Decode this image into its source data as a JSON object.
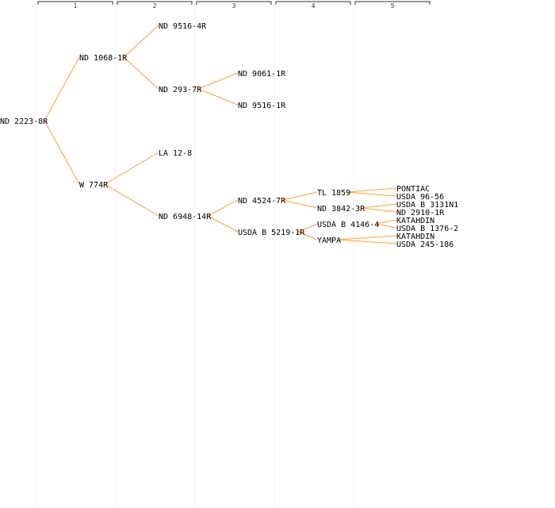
{
  "generations": [
    {
      "label": "1"
    },
    {
      "label": "2"
    },
    {
      "label": "3"
    },
    {
      "label": "4"
    },
    {
      "label": "5"
    }
  ],
  "colors": {
    "edge": "#f5a042",
    "guide": "#efefef",
    "header": "#333333",
    "text": "#000000"
  },
  "tree": {
    "name": "ND 2223-8R",
    "children": [
      {
        "name": "ND 1068-1R",
        "children": [
          {
            "name": "ND 9516-4R"
          },
          {
            "name": "ND 293-7R",
            "children": [
              {
                "name": "ND 9061-1R"
              },
              {
                "name": "ND 9516-1R"
              }
            ]
          }
        ]
      },
      {
        "name": "W 774R",
        "children": [
          {
            "name": "LA 12-8"
          },
          {
            "name": "ND 6948-14R",
            "children": [
              {
                "name": "ND 4524-7R",
                "children": [
                  {
                    "name": "TL 1859",
                    "children": [
                      {
                        "name": "PONTIAC"
                      },
                      {
                        "name": "USDA 96-56"
                      }
                    ]
                  },
                  {
                    "name": "ND 3842-3R",
                    "children": [
                      {
                        "name": "USDA B 3131N1"
                      },
                      {
                        "name": "ND 2910-1R"
                      }
                    ]
                  }
                ]
              },
              {
                "name": "USDA B 5219-1R",
                "children": [
                  {
                    "name": "USDA B 4146-4",
                    "children": [
                      {
                        "name": "KATAHDIN"
                      },
                      {
                        "name": "USDA B 1376-2"
                      }
                    ]
                  },
                  {
                    "name": "YAMPA",
                    "children": [
                      {
                        "name": "KATAHDIN"
                      },
                      {
                        "name": "USDA 245-186"
                      }
                    ]
                  }
                ]
              }
            ]
          }
        ]
      }
    ]
  }
}
